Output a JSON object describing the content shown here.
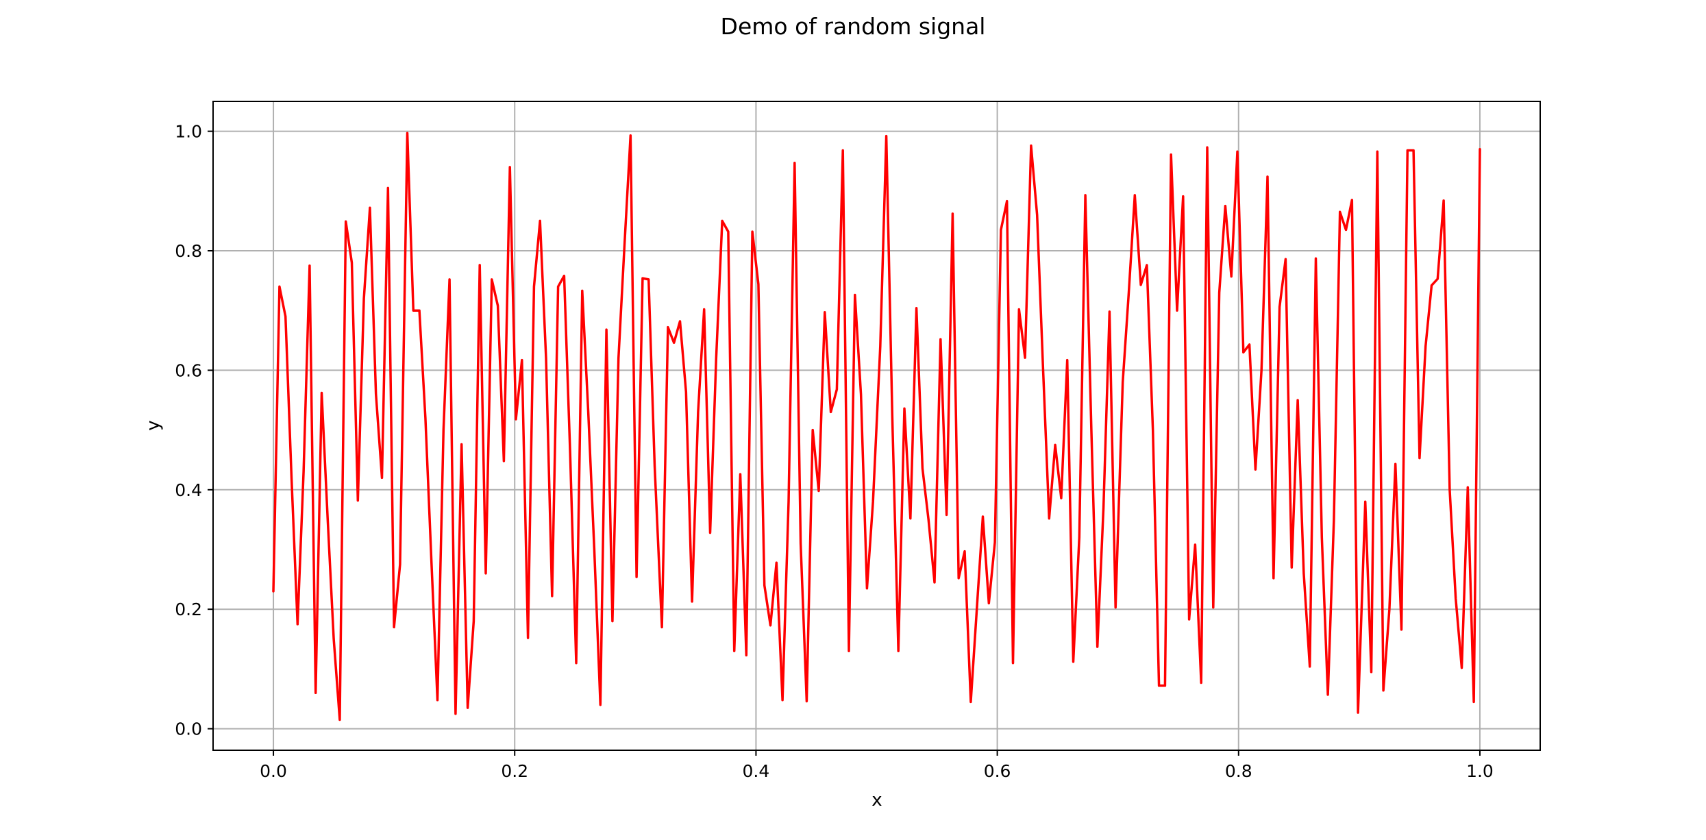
{
  "chart_data": {
    "type": "line",
    "title": "Demo of random signal",
    "xlabel": "x",
    "ylabel": "y",
    "xlim": [
      -0.05,
      1.05
    ],
    "ylim": [
      -0.036,
      1.05
    ],
    "xticks": [
      0.0,
      0.2,
      0.4,
      0.6,
      0.8,
      1.0
    ],
    "xtick_labels": [
      "0.0",
      "0.2",
      "0.4",
      "0.6",
      "0.8",
      "1.0"
    ],
    "yticks": [
      0.0,
      0.2,
      0.4,
      0.6,
      0.8,
      1.0
    ],
    "ytick_labels": [
      "0.0",
      "0.2",
      "0.4",
      "0.6",
      "0.8",
      "1.0"
    ],
    "grid": true,
    "color": "#ff0000",
    "series": [
      {
        "x": [
          0.0,
          0.005,
          0.01,
          0.015,
          0.02,
          0.025,
          0.03,
          0.035,
          0.04,
          0.045,
          0.05,
          0.055,
          0.06,
          0.065,
          0.07,
          0.075,
          0.08,
          0.085,
          0.09,
          0.095,
          0.1,
          0.105,
          0.111,
          0.116,
          0.121,
          0.126,
          0.131,
          0.136,
          0.141,
          0.146,
          0.151,
          0.156,
          0.161,
          0.166,
          0.171,
          0.176,
          0.181,
          0.186,
          0.191,
          0.196,
          0.201,
          0.206,
          0.211,
          0.216,
          0.221,
          0.226,
          0.231,
          0.236,
          0.241,
          0.246,
          0.251,
          0.256,
          0.261,
          0.266,
          0.271,
          0.276,
          0.281,
          0.286,
          0.291,
          0.296,
          0.301,
          0.306,
          0.311,
          0.316,
          0.322,
          0.327,
          0.332,
          0.337,
          0.342,
          0.347,
          0.352,
          0.357,
          0.362,
          0.367,
          0.372,
          0.377,
          0.382,
          0.387,
          0.392,
          0.397,
          0.402,
          0.407,
          0.412,
          0.417,
          0.422,
          0.427,
          0.432,
          0.437,
          0.442,
          0.447,
          0.452,
          0.457,
          0.462,
          0.467,
          0.472,
          0.477,
          0.482,
          0.487,
          0.492,
          0.497,
          0.503,
          0.508,
          0.513,
          0.518,
          0.523,
          0.528,
          0.533,
          0.538,
          0.543,
          0.548,
          0.553,
          0.558,
          0.563,
          0.568,
          0.573,
          0.578,
          0.583,
          0.588,
          0.593,
          0.598,
          0.603,
          0.608,
          0.613,
          0.618,
          0.623,
          0.628,
          0.633,
          0.638,
          0.643,
          0.648,
          0.653,
          0.658,
          0.663,
          0.668,
          0.673,
          0.678,
          0.683,
          0.688,
          0.693,
          0.698,
          0.704,
          0.709,
          0.714,
          0.719,
          0.724,
          0.729,
          0.734,
          0.739,
          0.744,
          0.749,
          0.754,
          0.759,
          0.764,
          0.769,
          0.774,
          0.779,
          0.784,
          0.789,
          0.794,
          0.799,
          0.804,
          0.809,
          0.814,
          0.819,
          0.824,
          0.829,
          0.834,
          0.839,
          0.844,
          0.849,
          0.854,
          0.859,
          0.864,
          0.869,
          0.874,
          0.879,
          0.884,
          0.889,
          0.894,
          0.899,
          0.905,
          0.91,
          0.915,
          0.92,
          0.925,
          0.93,
          0.935,
          0.94,
          0.945,
          0.95,
          0.955,
          0.96,
          0.965,
          0.97,
          0.975,
          0.98,
          0.985,
          0.99,
          0.995,
          1.0
        ],
        "y": [
          0.23,
          0.74,
          0.69,
          0.42,
          0.175,
          0.43,
          0.775,
          0.06,
          0.562,
          0.35,
          0.15,
          0.015,
          0.849,
          0.78,
          0.382,
          0.72,
          0.872,
          0.56,
          0.42,
          0.905,
          0.17,
          0.275,
          0.997,
          0.7,
          0.7,
          0.52,
          0.28,
          0.048,
          0.5,
          0.752,
          0.025,
          0.476,
          0.035,
          0.18,
          0.776,
          0.26,
          0.752,
          0.708,
          0.448,
          0.94,
          0.518,
          0.617,
          0.152,
          0.74,
          0.85,
          0.62,
          0.222,
          0.74,
          0.758,
          0.46,
          0.11,
          0.733,
          0.53,
          0.3,
          0.04,
          0.668,
          0.18,
          0.62,
          0.81,
          0.993,
          0.254,
          0.754,
          0.752,
          0.44,
          0.17,
          0.672,
          0.646,
          0.682,
          0.564,
          0.213,
          0.53,
          0.702,
          0.328,
          0.62,
          0.85,
          0.832,
          0.13,
          0.426,
          0.123,
          0.832,
          0.744,
          0.24,
          0.173,
          0.278,
          0.048,
          0.38,
          0.947,
          0.31,
          0.046,
          0.5,
          0.398,
          0.697,
          0.53,
          0.568,
          0.968,
          0.13,
          0.726,
          0.56,
          0.235,
          0.38,
          0.64,
          0.992,
          0.52,
          0.13,
          0.536,
          0.352,
          0.704,
          0.436,
          0.35,
          0.245,
          0.652,
          0.358,
          0.862,
          0.252,
          0.297,
          0.045,
          0.2,
          0.355,
          0.21,
          0.312,
          0.835,
          0.883,
          0.11,
          0.702,
          0.621,
          0.976,
          0.86,
          0.6,
          0.352,
          0.475,
          0.386,
          0.617,
          0.112,
          0.32,
          0.893,
          0.5,
          0.137,
          0.37,
          0.698,
          0.203,
          0.58,
          0.73,
          0.893,
          0.743,
          0.776,
          0.5,
          0.072,
          0.072,
          0.961,
          0.7,
          0.891,
          0.183,
          0.308,
          0.077,
          0.973,
          0.203,
          0.73,
          0.875,
          0.757,
          0.966,
          0.63,
          0.643,
          0.434,
          0.6,
          0.924,
          0.252,
          0.706,
          0.786,
          0.27,
          0.55,
          0.26,
          0.104,
          0.787,
          0.32,
          0.057,
          0.35,
          0.865,
          0.835,
          0.885,
          0.027,
          0.38,
          0.095,
          0.966,
          0.064,
          0.2,
          0.443,
          0.166,
          0.968,
          0.968,
          0.453,
          0.64,
          0.742,
          0.753,
          0.884,
          0.4,
          0.218,
          0.102,
          0.404,
          0.045,
          0.97
        ]
      }
    ]
  }
}
